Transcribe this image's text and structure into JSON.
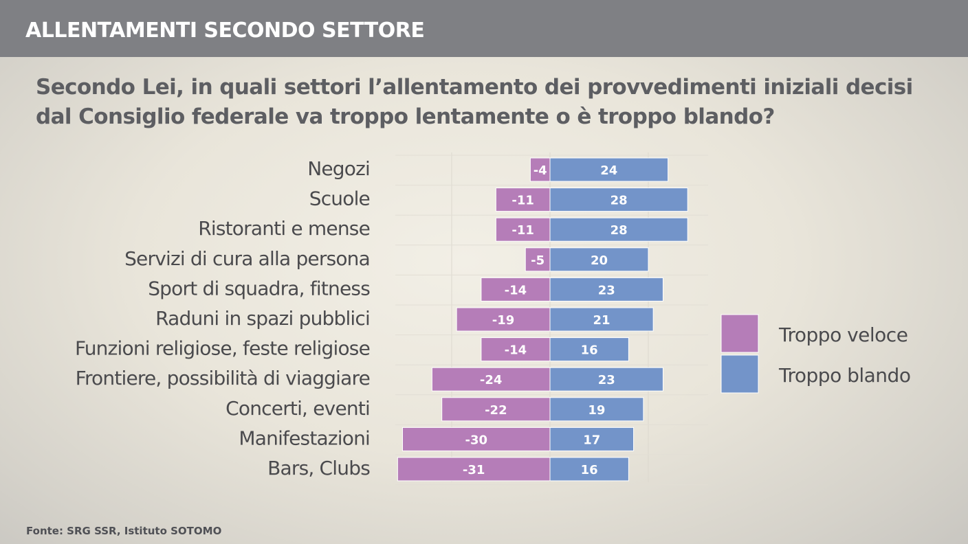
{
  "header": {
    "title": "ALLENTAMENTI SECONDO SETTORE"
  },
  "question": {
    "line1": "Secondo Lei, in quali settori l’allentamento dei provvedimenti iniziali decisi",
    "line2": "dal Consiglio federale va troppo lentamente o è troppo blando?"
  },
  "colors": {
    "troppo_veloce": "#b57db8",
    "troppo_blando": "#7394c9"
  },
  "chart_data": {
    "type": "bar",
    "orientation": "horizontal-diverging",
    "categories": [
      "Negozi",
      "Scuole",
      "Ristoranti e mense",
      "Servizi di cura alla persona",
      "Sport di squadra, fitness ",
      "Raduni in spazi pubblici",
      "Funzioni religiose, feste religiose",
      "Frontiere, possibilità di viaggiare",
      "Concerti, eventi",
      "Manifestazioni",
      "Bars, Clubs"
    ],
    "series": [
      {
        "name": "Troppo veloce",
        "values": [
          -4,
          -11,
          -11,
          -5,
          -14,
          -19,
          -14,
          -24,
          -22,
          -30,
          -31
        ]
      },
      {
        "name": "Troppo blando",
        "values": [
          24,
          28,
          28,
          20,
          23,
          21,
          16,
          23,
          19,
          17,
          16
        ]
      }
    ],
    "xlim": [
      -31,
      31
    ],
    "grid": true,
    "legend": "right"
  },
  "footer": {
    "source": "Fonte: SRG SSR, Istituto SOTOMO"
  }
}
